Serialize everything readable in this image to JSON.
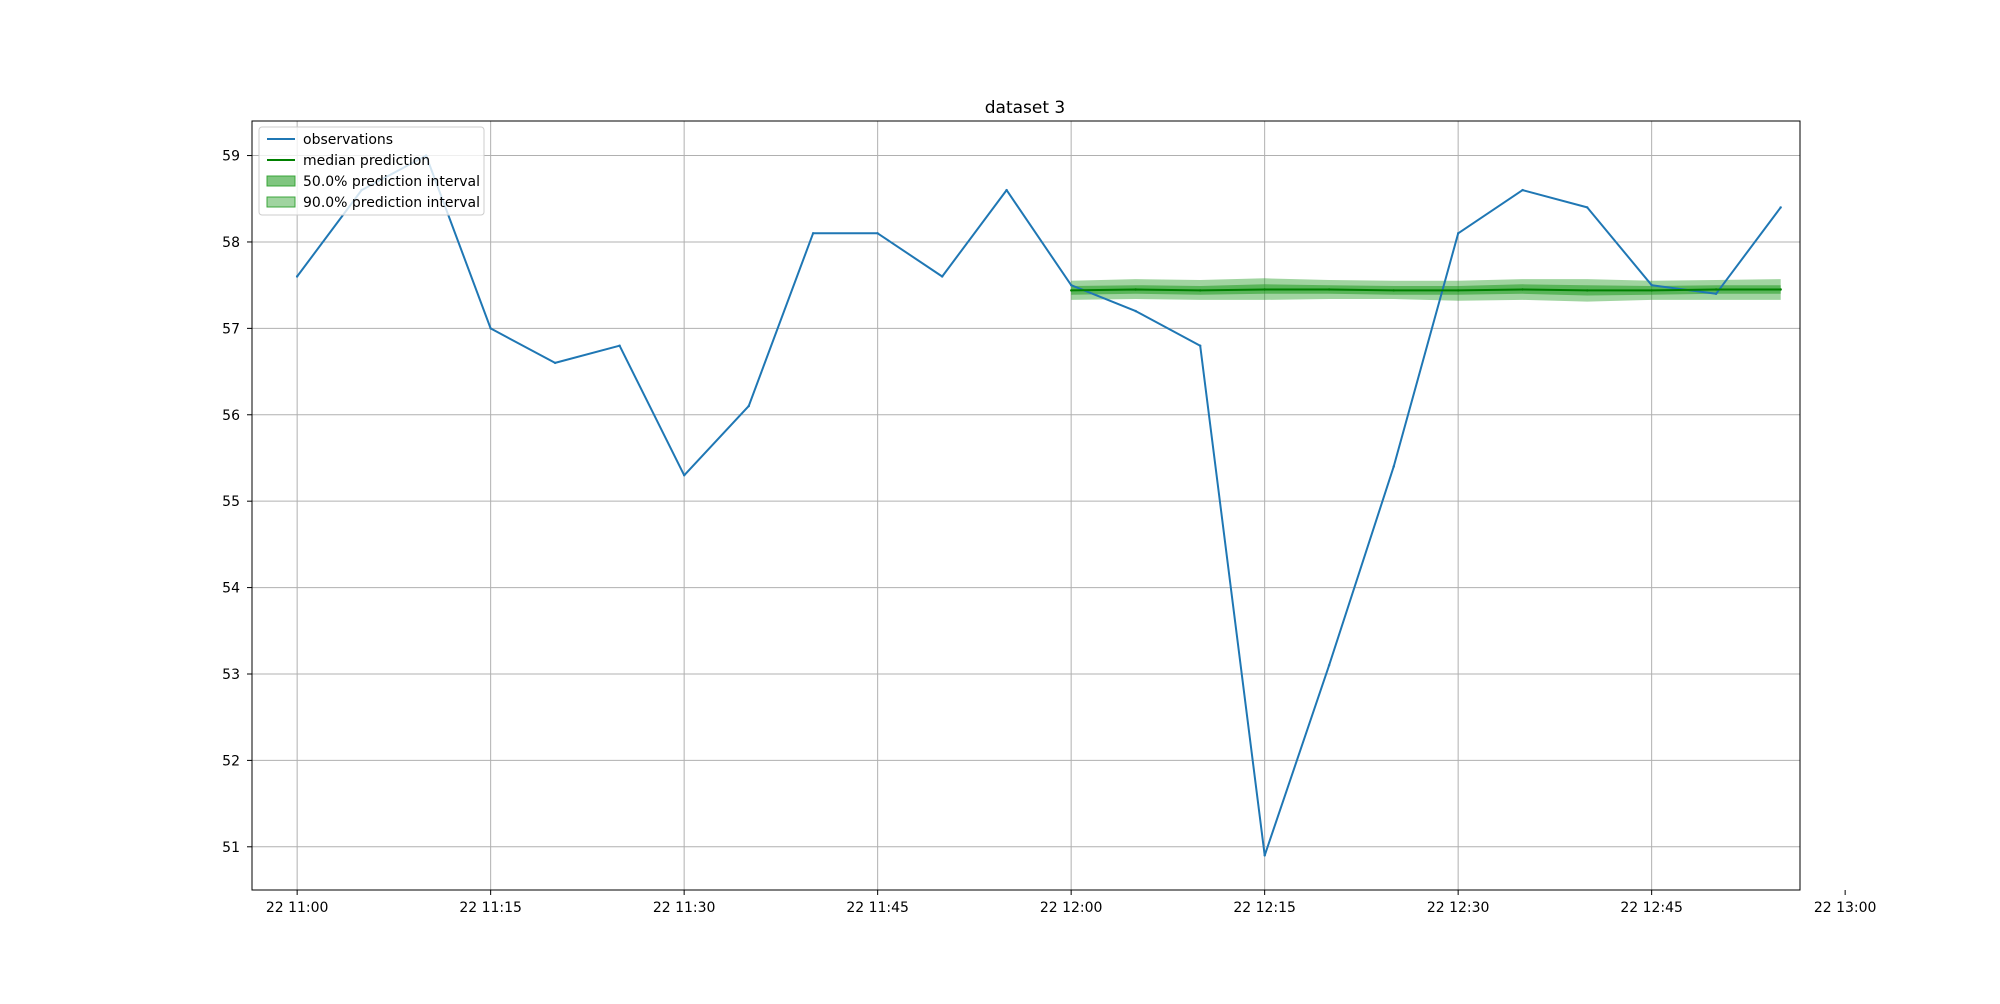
{
  "chart_data": {
    "type": "line",
    "title": "dataset 3",
    "xlabel": "",
    "ylabel": "",
    "grid": true,
    "legend_position": "top-left",
    "x_unit": "minutes after 22 11:00",
    "xlim": [
      -3.5,
      116.5
    ],
    "ylim": [
      50.5,
      59.4
    ],
    "x_ticks": [
      {
        "value": 0,
        "label": "22 11:00"
      },
      {
        "value": 15,
        "label": "22 11:15"
      },
      {
        "value": 30,
        "label": "22 11:30"
      },
      {
        "value": 45,
        "label": "22 11:45"
      },
      {
        "value": 60,
        "label": "22 12:00"
      },
      {
        "value": 75,
        "label": "22 12:15"
      },
      {
        "value": 90,
        "label": "22 12:30"
      },
      {
        "value": 105,
        "label": "22 12:45"
      },
      {
        "value": 120,
        "label": "22 13:00"
      }
    ],
    "y_ticks": [
      {
        "value": 51,
        "label": "51"
      },
      {
        "value": 52,
        "label": "52"
      },
      {
        "value": 53,
        "label": "53"
      },
      {
        "value": 54,
        "label": "54"
      },
      {
        "value": 55,
        "label": "55"
      },
      {
        "value": 56,
        "label": "56"
      },
      {
        "value": 57,
        "label": "57"
      },
      {
        "value": 58,
        "label": "58"
      },
      {
        "value": 59,
        "label": "59"
      }
    ],
    "legend": [
      {
        "label": "observations",
        "kind": "line",
        "color": "#1f77b4"
      },
      {
        "label": "median prediction",
        "kind": "line",
        "color": "#008000"
      },
      {
        "label": "50.0% prediction interval",
        "kind": "patch",
        "color": "#2ca02c",
        "opacity": 0.6
      },
      {
        "label": "90.0% prediction interval",
        "kind": "patch",
        "color": "#2ca02c",
        "opacity": 0.45
      }
    ],
    "series": [
      {
        "name": "observations",
        "color": "#1f77b4",
        "x": [
          0,
          5,
          10,
          15,
          20,
          25,
          30,
          35,
          40,
          45,
          50,
          55,
          60,
          65,
          70,
          75,
          80,
          85,
          90,
          95,
          100,
          105,
          110,
          115
        ],
        "values": [
          57.6,
          58.6,
          59.0,
          57.0,
          56.6,
          56.8,
          55.3,
          56.1,
          58.1,
          58.1,
          57.6,
          58.6,
          57.5,
          57.2,
          56.8,
          50.9,
          53.1,
          55.4,
          58.1,
          58.6,
          58.4,
          57.5,
          57.4,
          58.4
        ]
      },
      {
        "name": "median prediction",
        "color": "#008000",
        "x": [
          60,
          65,
          70,
          75,
          80,
          85,
          90,
          95,
          100,
          105,
          110,
          115
        ],
        "values": [
          57.44,
          57.45,
          57.44,
          57.45,
          57.45,
          57.44,
          57.44,
          57.45,
          57.44,
          57.44,
          57.45,
          57.45
        ]
      }
    ],
    "intervals": [
      {
        "name": "90.0% prediction interval",
        "color": "#2ca02c",
        "opacity": 0.45,
        "x": [
          60,
          65,
          70,
          75,
          80,
          85,
          90,
          95,
          100,
          105,
          110,
          115
        ],
        "lower": [
          57.33,
          57.34,
          57.33,
          57.33,
          57.34,
          57.34,
          57.32,
          57.33,
          57.31,
          57.33,
          57.33,
          57.33
        ],
        "upper": [
          57.55,
          57.57,
          57.56,
          57.58,
          57.56,
          57.55,
          57.55,
          57.57,
          57.57,
          57.55,
          57.56,
          57.57
        ]
      },
      {
        "name": "50.0% prediction interval",
        "color": "#2ca02c",
        "opacity": 0.6,
        "x": [
          60,
          65,
          70,
          75,
          80,
          85,
          90,
          95,
          100,
          105,
          110,
          115
        ],
        "lower": [
          57.39,
          57.4,
          57.39,
          57.4,
          57.4,
          57.39,
          57.39,
          57.4,
          57.38,
          57.39,
          57.4,
          57.4
        ],
        "upper": [
          57.49,
          57.5,
          57.49,
          57.51,
          57.5,
          57.49,
          57.49,
          57.51,
          57.5,
          57.49,
          57.5,
          57.5
        ]
      }
    ]
  }
}
